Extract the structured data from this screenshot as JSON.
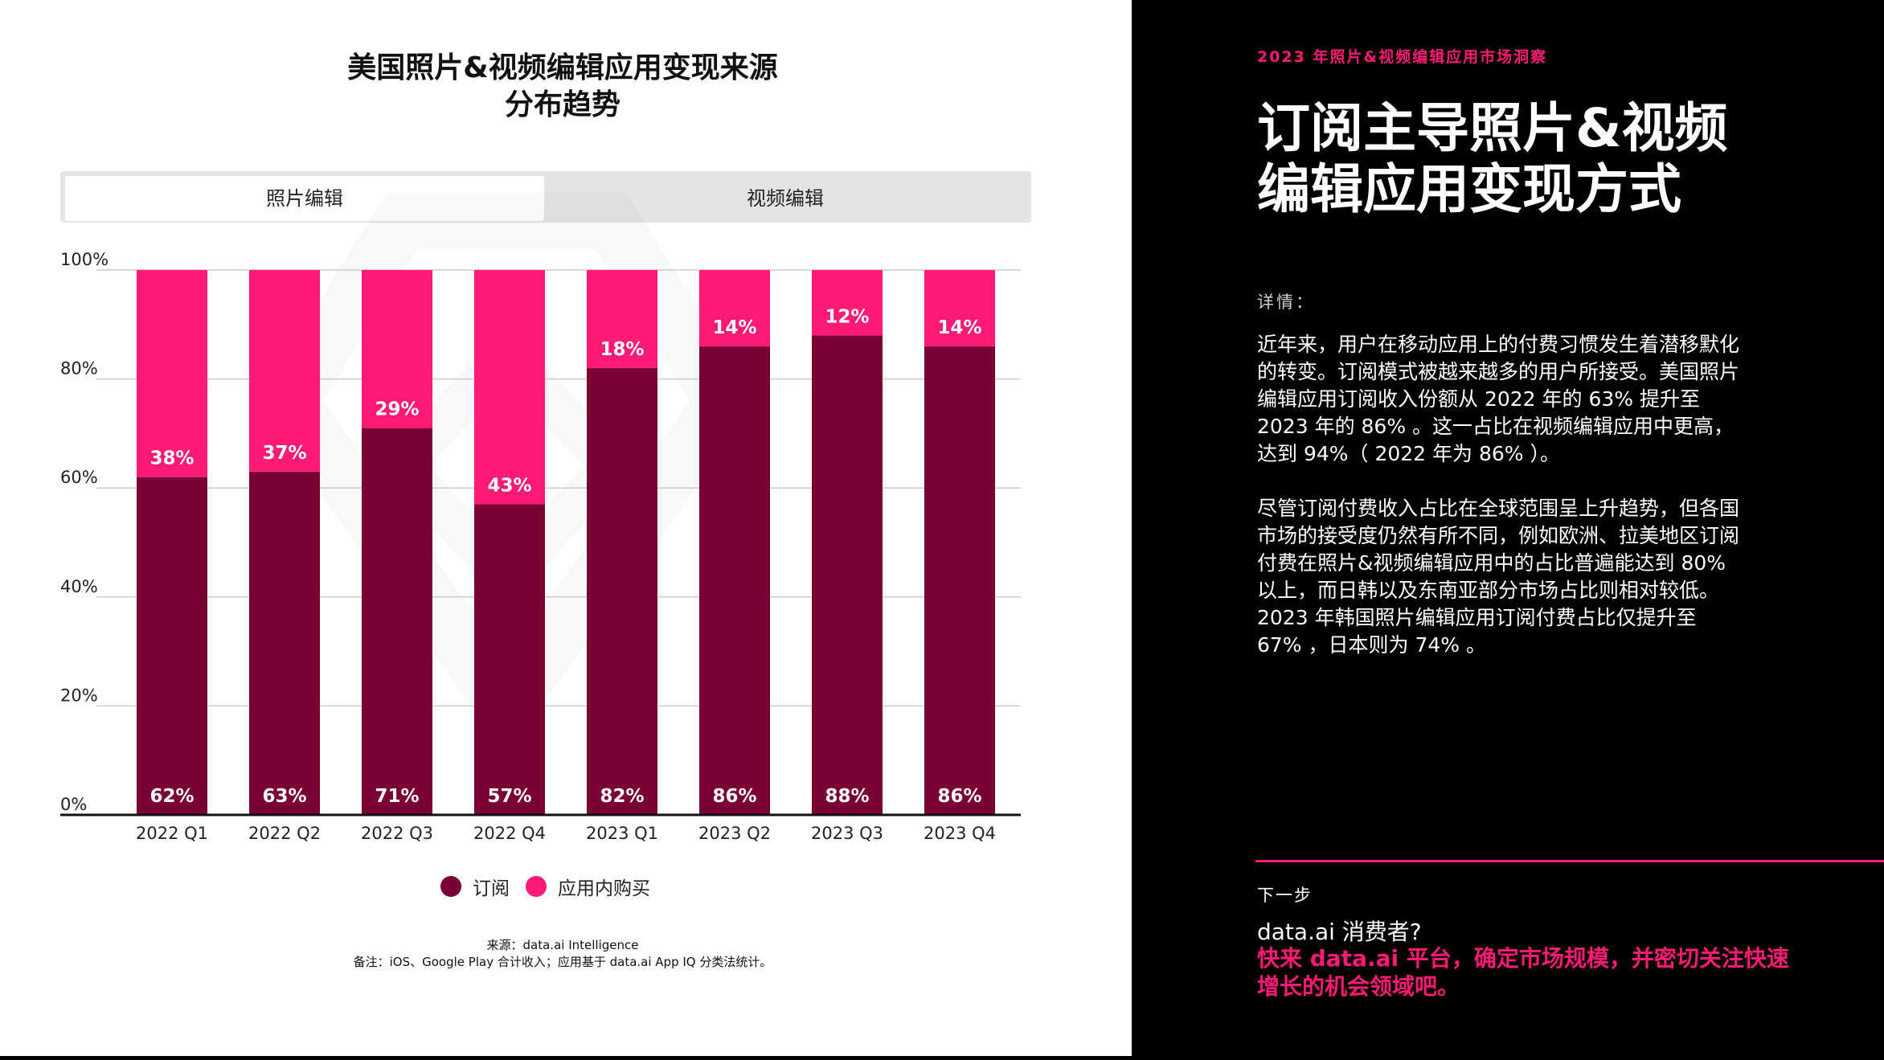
{
  "left": {
    "title_line1": "美国照片&视频编辑应用变现来源",
    "title_line2": "分布趋势",
    "tabs": [
      {
        "label": "照片编辑",
        "active": true
      },
      {
        "label": "视频编辑",
        "active": false
      }
    ],
    "legend": [
      {
        "label": "订阅",
        "color": "#7a0033"
      },
      {
        "label": "应用内购买",
        "color": "#ff1a75"
      }
    ],
    "footnote_line1": "来源：data.ai Intelligence",
    "footnote_line2": "备注：iOS、Google Play 合计收入；应用基于 data.ai App IQ 分类法统计。"
  },
  "chart_data": {
    "type": "bar",
    "stacked": true,
    "categories": [
      "2022 Q1",
      "2022 Q2",
      "2022 Q3",
      "2022 Q4",
      "2023 Q1",
      "2023 Q2",
      "2023 Q3",
      "2023 Q4"
    ],
    "series": [
      {
        "name": "订阅",
        "color": "#7a0033",
        "values": [
          62,
          63,
          71,
          57,
          82,
          86,
          88,
          86
        ],
        "labels": [
          "62%",
          "63%",
          "71%",
          "57%",
          "82%",
          "86%",
          "88%",
          "86%"
        ]
      },
      {
        "name": "应用内购买",
        "color": "#ff1a75",
        "values": [
          38,
          37,
          29,
          43,
          18,
          14,
          12,
          14
        ],
        "labels": [
          "38%",
          "37%",
          "29%",
          "43%",
          "18%",
          "14%",
          "12%",
          "14%"
        ]
      }
    ],
    "ylim": [
      0,
      100
    ],
    "yticks": [
      0,
      20,
      40,
      60,
      80,
      100
    ],
    "yticklabels": [
      "0%",
      "20%",
      "40%",
      "60%",
      "80%",
      "100%"
    ],
    "grid": true
  },
  "right": {
    "report_tag": "2023 年照片&视频编辑应用市场洞察",
    "headline_line1": "订阅主导照片&视频",
    "headline_line2": "编辑应用变现方式",
    "details_label": "详情：",
    "para1": [
      "近年来，用户在移动应用上的付费习惯发生着潜移默化",
      "的转变。订阅模式被越来越多的用户所接受。美国照片",
      "编辑应用订阅收入份额从 2022 年的 63% 提升至",
      "2023 年的 86% 。这一占比在视频编辑应用中更高，",
      "达到 94%（ 2022 年为 86% ）。"
    ],
    "para2": [
      "尽管订阅付费收入占比在全球范围呈上升趋势，但各国",
      "市场的接受度仍然有所不同，例如欧洲、拉美地区订阅",
      "付费在照片&视频编辑应用中的占比普遍能达到 80%",
      "以上，而日韩以及东南亚部分市场占比则相对较低。",
      "2023 年韩国照片编辑应用订阅付费占比仅提升至",
      "67% ，日本则为 74% 。"
    ],
    "next_label": "下一步",
    "cta_title": "data.ai 消费者?",
    "cta_line1": "快来 data.ai 平台，确定市场规模，并密切关注快速",
    "cta_line2": "增长的机会领域吧。"
  }
}
